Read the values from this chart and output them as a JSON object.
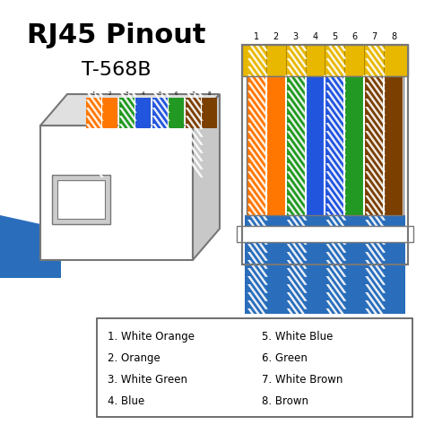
{
  "title_line1": "RJ45 Pinout",
  "title_line2": "T-568B",
  "wire_colors_hex": [
    [
      "#FF7700",
      true
    ],
    [
      "#FF7700",
      false
    ],
    [
      "#229922",
      true
    ],
    [
      "#2255DD",
      false
    ],
    [
      "#2255DD",
      true
    ],
    [
      "#229922",
      false
    ],
    [
      "#7B3F00",
      true
    ],
    [
      "#7B3F00",
      false
    ]
  ],
  "legend_left": [
    "1. White Orange",
    "2. Orange",
    "3. White Green",
    "4. Blue"
  ],
  "legend_right": [
    "5. White Blue",
    "6. Green",
    "7. White Brown",
    "8. Brown"
  ],
  "cable_blue": "#2A6EBB",
  "connector_outline": "#777777",
  "legend_outline": "#555555",
  "yellow_contact": "#E8B800"
}
